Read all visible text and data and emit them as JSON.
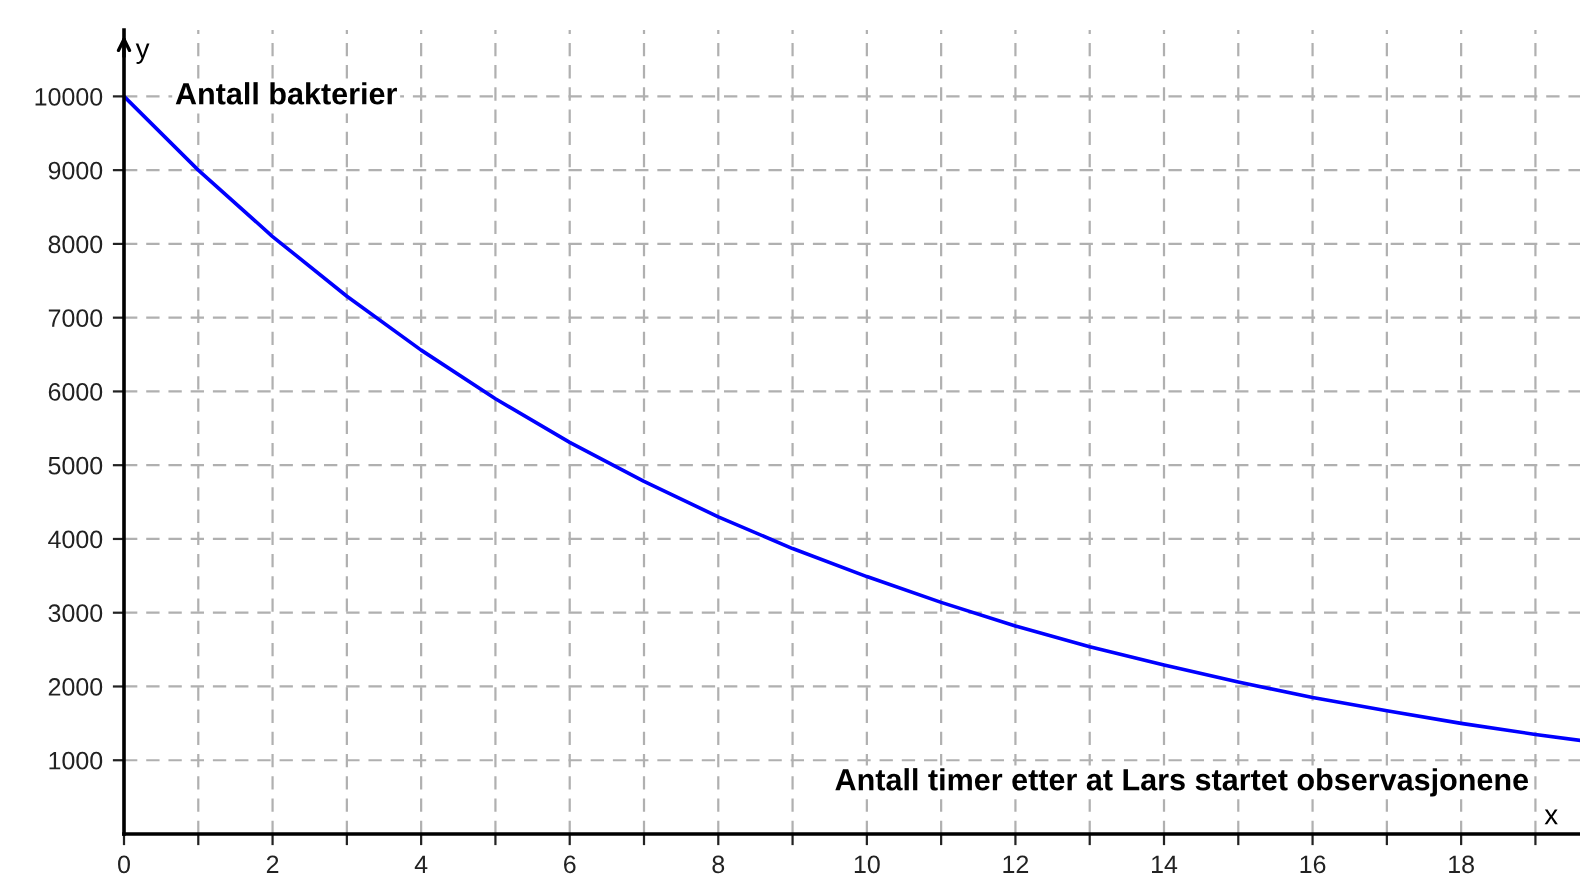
{
  "chart_data": {
    "type": "line",
    "xlabel": "Antall timer etter at Lars startet observasjonene",
    "ylabel": "Antall bakterier",
    "annotations": [
      "y",
      "x"
    ],
    "x": [
      0,
      1,
      2,
      3,
      4,
      5,
      6,
      7,
      8,
      9,
      10,
      11,
      12,
      13,
      14,
      15,
      16,
      17,
      18,
      19,
      19.6
    ],
    "series": [
      {
        "color": "#0000ff",
        "values": [
          10000,
          9000,
          8100,
          7290,
          6560,
          5900,
          5310,
          4780,
          4300,
          3870,
          3490,
          3140,
          2820,
          2540,
          2290,
          2060,
          1850,
          1670,
          1500,
          1350,
          1270
        ]
      }
    ],
    "xlim": [
      0,
      19.6
    ],
    "ylim": [
      0,
      10900
    ],
    "xticks": [
      0,
      {
        "value": 1,
        "label": null
      },
      2,
      {
        "value": 3,
        "label": null
      },
      4,
      {
        "value": 5,
        "label": null
      },
      6,
      {
        "value": 7,
        "label": null
      },
      8,
      {
        "value": 9,
        "label": null
      },
      10,
      {
        "value": 11,
        "label": null
      },
      12,
      {
        "value": 13,
        "label": null
      },
      14,
      {
        "value": 15,
        "label": null
      },
      16,
      {
        "value": 17,
        "label": null
      },
      18,
      {
        "value": 19,
        "label": null
      }
    ],
    "yticks": [
      1000,
      2000,
      3000,
      4000,
      5000,
      6000,
      7000,
      8000,
      9000,
      10000
    ],
    "grid": true,
    "marker": "none",
    "line_style": "solid"
  }
}
